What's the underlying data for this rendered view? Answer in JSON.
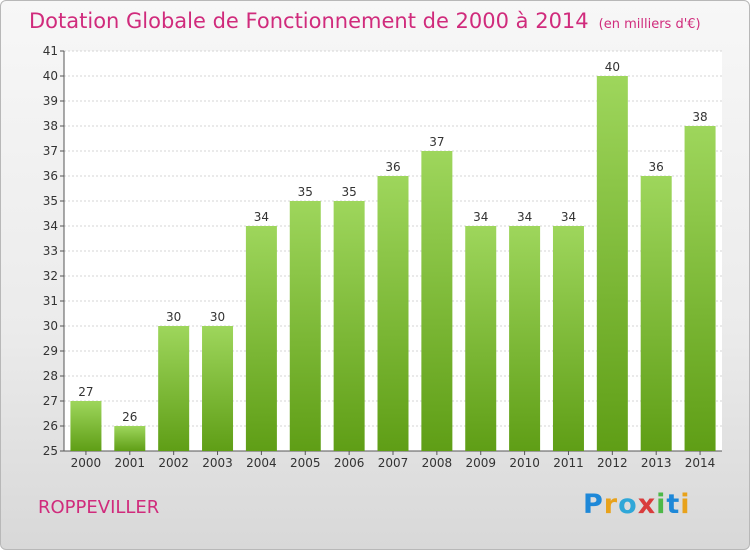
{
  "header": {
    "title": "Dotation Globale de Fonctionnement de 2000 à 2014",
    "unit": "(en milliers d'€)"
  },
  "footer": {
    "commune": "ROPPEVILLER",
    "logo_text": "Proxiti",
    "logo_colors": [
      "#1e88d8",
      "#e8a21b",
      "#2fa7d8",
      "#d93c3c",
      "#4db848",
      "#1e88d8",
      "#e8a21b"
    ]
  },
  "colors": {
    "bar_top": "#9ed65c",
    "bar_bottom": "#5f9e16",
    "text_accent": "#d02b7c",
    "axis": "#555555"
  },
  "chart_data": {
    "type": "bar",
    "categories": [
      "2000",
      "2001",
      "2002",
      "2003",
      "2004",
      "2005",
      "2006",
      "2007",
      "2008",
      "2009",
      "2010",
      "2011",
      "2012",
      "2013",
      "2014"
    ],
    "values": [
      27,
      26,
      30,
      30,
      34,
      35,
      35,
      36,
      37,
      34,
      34,
      34,
      40,
      36,
      38
    ],
    "title": "Dotation Globale de Fonctionnement de 2000 à 2014",
    "subtitle": "(en milliers d'€)",
    "xlabel": "",
    "ylabel": "",
    "ylim": [
      25,
      41
    ],
    "yticks": [
      25,
      26,
      27,
      28,
      29,
      30,
      31,
      32,
      33,
      34,
      35,
      36,
      37,
      38,
      39,
      40,
      41
    ],
    "grid": true,
    "legend": "none"
  }
}
